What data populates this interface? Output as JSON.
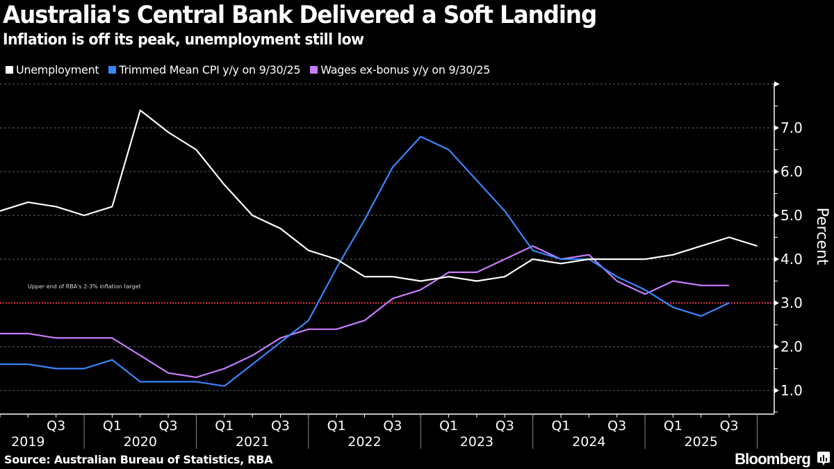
{
  "header": {
    "title": "Australia's Central Bank Delivered a Soft Landing",
    "subtitle": "Inflation is off its peak, unemployment still low"
  },
  "footer": {
    "source": "Source: Australian Bureau of Statistics, RBA",
    "brand": "Bloomberg"
  },
  "chart_data": {
    "type": "line",
    "title": "Australia's Central Bank Delivered a Soft Landing",
    "subtitle": "Inflation is off its peak, unemployment still low",
    "xlabel": "",
    "ylabel": "Percent",
    "ylim": [
      0.5,
      7.9
    ],
    "yticks": [
      "1.0",
      "2.0",
      "3.0",
      "4.0",
      "5.0",
      "6.0",
      "7.0"
    ],
    "ytick_values": [
      1,
      2,
      3,
      4,
      5,
      6,
      7
    ],
    "grid": true,
    "legend_position": "top-left",
    "x": [
      "Q1 2019",
      "Q2 2019",
      "Q3 2019",
      "Q4 2019",
      "Q1 2020",
      "Q2 2020",
      "Q3 2020",
      "Q4 2020",
      "Q1 2021",
      "Q2 2021",
      "Q3 2021",
      "Q4 2021",
      "Q1 2022",
      "Q2 2022",
      "Q3 2022",
      "Q4 2022",
      "Q1 2023",
      "Q2 2023",
      "Q3 2023",
      "Q4 2023",
      "Q1 2024",
      "Q2 2024",
      "Q3 2024",
      "Q4 2024",
      "Q1 2025",
      "Q2 2025",
      "Q3 2025",
      "Q4 2025"
    ],
    "x_quarter_ticks": [
      {
        "label": "Q3",
        "index": 2
      },
      {
        "label": "Q1",
        "index": 4
      },
      {
        "label": "Q3",
        "index": 6
      },
      {
        "label": "Q1",
        "index": 8
      },
      {
        "label": "Q3",
        "index": 10
      },
      {
        "label": "Q1",
        "index": 12
      },
      {
        "label": "Q3",
        "index": 14
      },
      {
        "label": "Q1",
        "index": 16
      },
      {
        "label": "Q3",
        "index": 18
      },
      {
        "label": "Q1",
        "index": 20
      },
      {
        "label": "Q3",
        "index": 22
      },
      {
        "label": "Q1",
        "index": 24
      },
      {
        "label": "Q3",
        "index": 26
      }
    ],
    "x_years": [
      {
        "label": "2019",
        "start": 0,
        "end": 3
      },
      {
        "label": "2020",
        "start": 4,
        "end": 7
      },
      {
        "label": "2021",
        "start": 8,
        "end": 11
      },
      {
        "label": "2022",
        "start": 12,
        "end": 15
      },
      {
        "label": "2023",
        "start": 16,
        "end": 19
      },
      {
        "label": "2024",
        "start": 20,
        "end": 23
      },
      {
        "label": "2025",
        "start": 24,
        "end": 27
      }
    ],
    "series": [
      {
        "name": "Unemployment",
        "color": "#ffffff",
        "values": [
          5.1,
          5.3,
          5.2,
          5.0,
          5.2,
          7.4,
          6.9,
          6.5,
          5.7,
          5.0,
          4.7,
          4.2,
          4.0,
          3.6,
          3.6,
          3.5,
          3.6,
          3.5,
          3.6,
          4.0,
          3.9,
          4.0,
          4.0,
          4.0,
          4.1,
          4.3,
          4.5,
          4.3
        ]
      },
      {
        "name": "Trimmed Mean CPI y/y on 9/30/25",
        "color": "#3a86ff",
        "values": [
          1.6,
          1.6,
          1.5,
          1.5,
          1.7,
          1.2,
          1.2,
          1.2,
          1.1,
          1.6,
          2.1,
          2.6,
          3.8,
          4.9,
          6.1,
          6.8,
          6.5,
          5.8,
          5.1,
          4.2,
          4.0,
          4.0,
          3.6,
          3.3,
          2.9,
          2.7,
          3.0,
          null
        ]
      },
      {
        "name": "Wages ex-bonus y/y on 9/30/25",
        "color": "#c77dff",
        "values": [
          2.3,
          2.3,
          2.2,
          2.2,
          2.2,
          1.8,
          1.4,
          1.3,
          1.5,
          1.8,
          2.2,
          2.4,
          2.4,
          2.6,
          3.1,
          3.3,
          3.7,
          3.7,
          4.0,
          4.3,
          4.0,
          4.1,
          3.5,
          3.2,
          3.5,
          3.4,
          3.4,
          null
        ]
      }
    ],
    "reference_line": {
      "value": 3.0,
      "color": "#e0304a",
      "label": "Upper end of RBA's 2-3% inflation target"
    }
  }
}
